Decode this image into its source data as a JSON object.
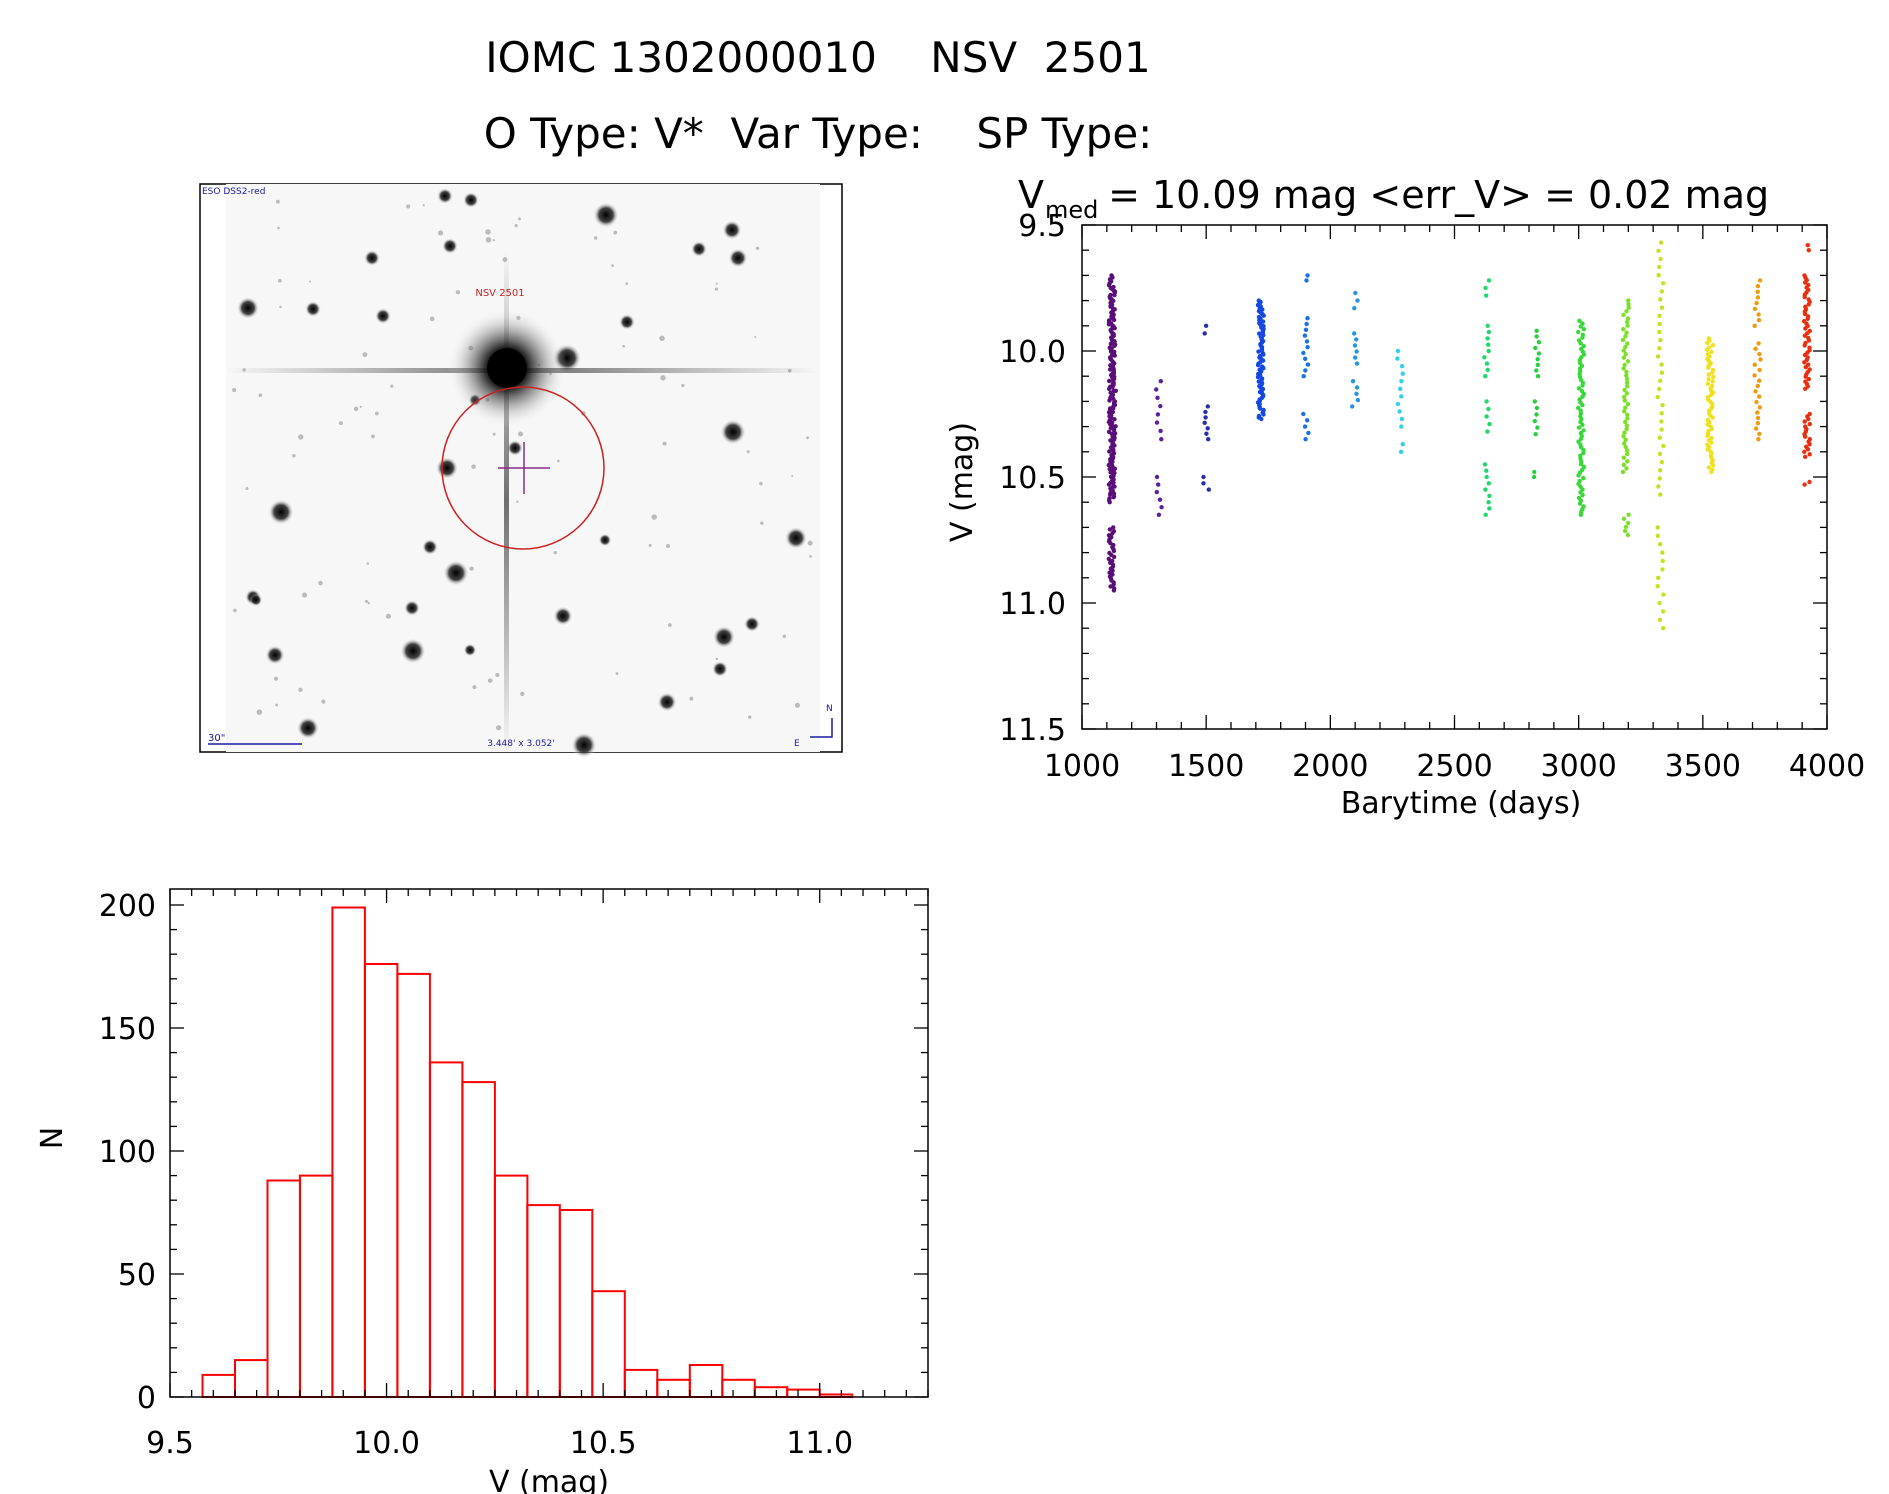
{
  "header": {
    "title_line1": "IOMC 1302000010    NSV  2501",
    "title_line2": "O Type: V*  Var Type:    SP Type:"
  },
  "finder": {
    "survey_label": "ESO DSS2-red",
    "star_label": "NSV 2501",
    "scale_label": "30\"",
    "size_label": "3.448' x 3.052'",
    "north_label": "N",
    "east_label": "E",
    "colors": {
      "ring": "#cc2020",
      "crosshair": "#8a2a8a",
      "label": "#cc2020",
      "annot": "#1a1aa0"
    }
  },
  "chart_data": [
    {
      "type": "scatter",
      "title_prefix": "V",
      "title_sub": "med",
      "title_rest": " = 10.09 mag <err_V> = 0.02 mag",
      "xlabel": "Barytime (days)",
      "ylabel": "V (mag)",
      "xlim": [
        1000,
        4000
      ],
      "ylim": [
        11.5,
        9.5
      ],
      "xticks": [
        "1000",
        "1500",
        "2000",
        "2500",
        "3000",
        "3500",
        "4000"
      ],
      "yticks": [
        "9.5",
        "10.0",
        "10.5",
        "11.0",
        "11.5"
      ],
      "groups": [
        {
          "x": 1120,
          "color": "#5a0f78",
          "ranges": [
            [
              9.7,
              10.6
            ],
            [
              10.7,
              10.95
            ]
          ],
          "n": 150
        },
        {
          "x": 1125,
          "color": "#5a0f78",
          "ranges": [
            [
              9.75,
              10.58
            ]
          ],
          "n": 60
        },
        {
          "x": 1310,
          "color": "#5a1f9a",
          "ranges": [
            [
              10.12,
              10.35
            ],
            [
              10.5,
              10.65
            ]
          ],
          "n": 14
        },
        {
          "x": 1500,
          "color": "#2430b0",
          "ranges": [
            [
              9.9,
              9.93
            ],
            [
              10.22,
              10.35
            ],
            [
              10.5,
              10.55
            ]
          ],
          "n": 12
        },
        {
          "x": 1720,
          "color": "#1548e0",
          "ranges": [
            [
              9.8,
              10.27
            ]
          ],
          "n": 80
        },
        {
          "x": 1900,
          "color": "#1a72e0",
          "ranges": [
            [
              9.7,
              9.72
            ],
            [
              9.87,
              10.1
            ],
            [
              10.25,
              10.35
            ]
          ],
          "n": 16
        },
        {
          "x": 2100,
          "color": "#2496e0",
          "ranges": [
            [
              9.77,
              9.83
            ],
            [
              9.93,
              10.05
            ],
            [
              10.12,
              10.22
            ]
          ],
          "n": 13
        },
        {
          "x": 2280,
          "color": "#30d0e8",
          "ranges": [
            [
              10.0,
              10.3
            ],
            [
              10.37,
              10.4
            ]
          ],
          "n": 12
        },
        {
          "x": 2630,
          "color": "#20d86a",
          "ranges": [
            [
              9.72,
              9.78
            ],
            [
              9.9,
              10.1
            ],
            [
              10.2,
              10.32
            ],
            [
              10.45,
              10.65
            ]
          ],
          "n": 26
        },
        {
          "x": 2830,
          "color": "#28d040",
          "ranges": [
            [
              9.92,
              10.1
            ],
            [
              10.2,
              10.33
            ],
            [
              10.48,
              10.5
            ]
          ],
          "n": 16
        },
        {
          "x": 3010,
          "color": "#38d838",
          "ranges": [
            [
              9.88,
              10.65
            ]
          ],
          "n": 70
        },
        {
          "x": 3190,
          "color": "#7ce028",
          "ranges": [
            [
              9.8,
              10.48
            ],
            [
              10.65,
              10.73
            ]
          ],
          "n": 55
        },
        {
          "x": 3330,
          "color": "#c8e020",
          "ranges": [
            [
              9.57,
              10.57
            ],
            [
              10.7,
              11.1
            ]
          ],
          "n": 45
        },
        {
          "x": 3530,
          "color": "#f0e020",
          "ranges": [
            [
              9.95,
              10.48
            ]
          ],
          "n": 60
        },
        {
          "x": 3720,
          "color": "#f09a10",
          "ranges": [
            [
              9.72,
              9.9
            ],
            [
              9.97,
              10.35
            ]
          ],
          "n": 28
        },
        {
          "x": 3920,
          "color": "#e83010",
          "ranges": [
            [
              9.58,
              9.6
            ],
            [
              9.7,
              10.15
            ],
            [
              10.25,
              10.42
            ],
            [
              10.52,
              10.53
            ]
          ],
          "n": 70
        }
      ]
    },
    {
      "type": "bar",
      "subtype": "histogram",
      "xlabel": "V (mag)",
      "ylabel": "N",
      "xlim": [
        9.5,
        11.25
      ],
      "ylim": [
        0,
        200
      ],
      "xticks": [
        "9.5",
        "10.0",
        "10.5",
        "11.0"
      ],
      "yticks": [
        "0",
        "50",
        "100",
        "150",
        "200"
      ],
      "bin_start": 9.575,
      "bin_width": 0.075,
      "values": [
        9,
        15,
        88,
        90,
        199,
        176,
        172,
        136,
        128,
        90,
        78,
        76,
        43,
        11,
        7,
        13,
        7,
        4,
        3,
        1
      ],
      "color": "#ff0000"
    }
  ]
}
